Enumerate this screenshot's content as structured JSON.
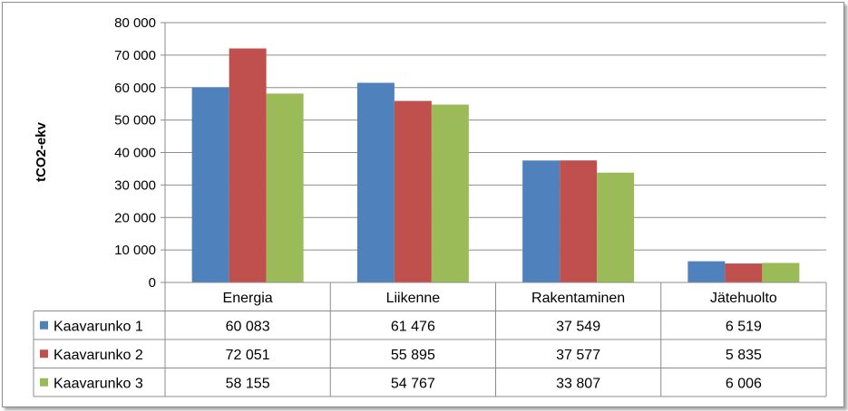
{
  "chart_data": {
    "type": "bar",
    "ylabel": "tCO2-ekv",
    "ylim": [
      0,
      80000
    ],
    "y_tick_step": 10000,
    "y_ticks": [
      "0",
      "10 000",
      "20 000",
      "30 000",
      "40 000",
      "50 000",
      "60 000",
      "70 000",
      "80 000"
    ],
    "categories": [
      "Energia",
      "Liikenne",
      "Rakentaminen",
      "Jätehuolto"
    ],
    "grid": true,
    "legend": "data-table",
    "series": [
      {
        "name": "Kaavarunko 1",
        "color": "#4F81BD",
        "values": [
          60083,
          61476,
          37549,
          6519
        ],
        "labels": [
          "60 083",
          "61 476",
          "37 549",
          "6 519"
        ]
      },
      {
        "name": "Kaavarunko 2",
        "color": "#C0504D",
        "values": [
          72051,
          55895,
          37577,
          5835
        ],
        "labels": [
          "72 051",
          "55 895",
          "37 577",
          "5 835"
        ]
      },
      {
        "name": "Kaavarunko 3",
        "color": "#9BBB59",
        "values": [
          58155,
          54767,
          33807,
          6006
        ],
        "labels": [
          "58 155",
          "54 767",
          "33 807",
          "6 006"
        ]
      }
    ]
  }
}
